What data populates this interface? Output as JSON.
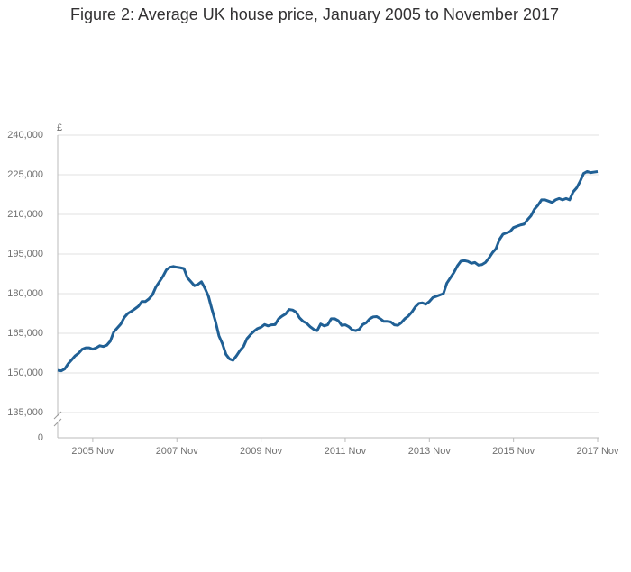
{
  "chart_data": {
    "type": "line",
    "title": "Figure 2: Average UK house price, January 2005 to November 2017",
    "y_unit": "£",
    "x": [
      "2005-01",
      "2005-02",
      "2005-03",
      "2005-04",
      "2005-05",
      "2005-06",
      "2005-07",
      "2005-08",
      "2005-09",
      "2005-10",
      "2005-11",
      "2005-12",
      "2006-01",
      "2006-02",
      "2006-03",
      "2006-04",
      "2006-05",
      "2006-06",
      "2006-07",
      "2006-08",
      "2006-09",
      "2006-10",
      "2006-11",
      "2006-12",
      "2007-01",
      "2007-02",
      "2007-03",
      "2007-04",
      "2007-05",
      "2007-06",
      "2007-07",
      "2007-08",
      "2007-09",
      "2007-10",
      "2007-11",
      "2007-12",
      "2008-01",
      "2008-02",
      "2008-03",
      "2008-04",
      "2008-05",
      "2008-06",
      "2008-07",
      "2008-08",
      "2008-09",
      "2008-10",
      "2008-11",
      "2008-12",
      "2009-01",
      "2009-02",
      "2009-03",
      "2009-04",
      "2009-05",
      "2009-06",
      "2009-07",
      "2009-08",
      "2009-09",
      "2009-10",
      "2009-11",
      "2009-12",
      "2010-01",
      "2010-02",
      "2010-03",
      "2010-04",
      "2010-05",
      "2010-06",
      "2010-07",
      "2010-08",
      "2010-09",
      "2010-10",
      "2010-11",
      "2010-12",
      "2011-01",
      "2011-02",
      "2011-03",
      "2011-04",
      "2011-05",
      "2011-06",
      "2011-07",
      "2011-08",
      "2011-09",
      "2011-10",
      "2011-11",
      "2011-12",
      "2012-01",
      "2012-02",
      "2012-03",
      "2012-04",
      "2012-05",
      "2012-06",
      "2012-07",
      "2012-08",
      "2012-09",
      "2012-10",
      "2012-11",
      "2012-12",
      "2013-01",
      "2013-02",
      "2013-03",
      "2013-04",
      "2013-05",
      "2013-06",
      "2013-07",
      "2013-08",
      "2013-09",
      "2013-10",
      "2013-11",
      "2013-12",
      "2014-01",
      "2014-02",
      "2014-03",
      "2014-04",
      "2014-05",
      "2014-06",
      "2014-07",
      "2014-08",
      "2014-09",
      "2014-10",
      "2014-11",
      "2014-12",
      "2015-01",
      "2015-02",
      "2015-03",
      "2015-04",
      "2015-05",
      "2015-06",
      "2015-07",
      "2015-08",
      "2015-09",
      "2015-10",
      "2015-11",
      "2015-12",
      "2016-01",
      "2016-02",
      "2016-03",
      "2016-04",
      "2016-05",
      "2016-06",
      "2016-07",
      "2016-08",
      "2016-09",
      "2016-10",
      "2016-11",
      "2016-12",
      "2017-01",
      "2017-02",
      "2017-03",
      "2017-04",
      "2017-05",
      "2017-06",
      "2017-07",
      "2017-08",
      "2017-09",
      "2017-10",
      "2017-11"
    ],
    "series": [
      {
        "color": "#206095",
        "values": [
          151000,
          150800,
          151500,
          153500,
          155000,
          156500,
          157500,
          159000,
          159500,
          159500,
          159000,
          159500,
          160300,
          160000,
          160500,
          162000,
          165500,
          167000,
          168500,
          171000,
          172500,
          173300,
          174200,
          175200,
          177000,
          177000,
          178000,
          179500,
          182500,
          184500,
          186500,
          189000,
          190000,
          190300,
          190000,
          189800,
          189500,
          186000,
          184500,
          183000,
          183500,
          184500,
          182000,
          179000,
          174000,
          169500,
          164000,
          161000,
          157000,
          155300,
          154800,
          156500,
          158500,
          160000,
          163000,
          164500,
          165800,
          166800,
          167300,
          168300,
          167800,
          168200,
          168300,
          170500,
          171500,
          172300,
          174000,
          173800,
          173000,
          170800,
          169500,
          168800,
          167500,
          166500,
          166000,
          168500,
          167800,
          168200,
          170500,
          170500,
          169800,
          168000,
          168200,
          167500,
          166300,
          166000,
          166500,
          168300,
          169000,
          170500,
          171200,
          171300,
          170500,
          169500,
          169500,
          169300,
          168200,
          168000,
          169000,
          170500,
          171500,
          173000,
          175000,
          176300,
          176500,
          176000,
          177000,
          178500,
          179000,
          179500,
          180000,
          184000,
          186000,
          188000,
          190500,
          192300,
          192500,
          192200,
          191500,
          191800,
          190800,
          191000,
          191800,
          193500,
          195500,
          197000,
          200500,
          202500,
          203000,
          203500,
          205000,
          205500,
          206000,
          206300,
          208000,
          209500,
          212000,
          213500,
          215500,
          215500,
          215000,
          214500,
          215500,
          216000,
          215500,
          216000,
          215500,
          218500,
          220000,
          222500,
          225500,
          226200,
          225800,
          226000,
          226200
        ]
      }
    ],
    "ylim": [
      0,
      240000
    ],
    "y_break": 135000,
    "yticks": [
      {
        "value": 0,
        "label": "0"
      },
      {
        "value": 135000,
        "label": "135,000"
      },
      {
        "value": 150000,
        "label": "150,000"
      },
      {
        "value": 165000,
        "label": "165,000"
      },
      {
        "value": 180000,
        "label": "180,000"
      },
      {
        "value": 195000,
        "label": "195,000"
      },
      {
        "value": 210000,
        "label": "210,000"
      },
      {
        "value": 225000,
        "label": "225,000"
      },
      {
        "value": 240000,
        "label": "240,000"
      }
    ],
    "xticks": [
      {
        "value": "2005-11",
        "label": "2005 Nov"
      },
      {
        "value": "2007-11",
        "label": "2007 Nov"
      },
      {
        "value": "2009-11",
        "label": "2009 Nov"
      },
      {
        "value": "2011-11",
        "label": "2011 Nov"
      },
      {
        "value": "2013-11",
        "label": "2013 Nov"
      },
      {
        "value": "2015-11",
        "label": "2015 Nov"
      },
      {
        "value": "2017-11",
        "label": "2017 Nov"
      }
    ],
    "grid": true
  }
}
